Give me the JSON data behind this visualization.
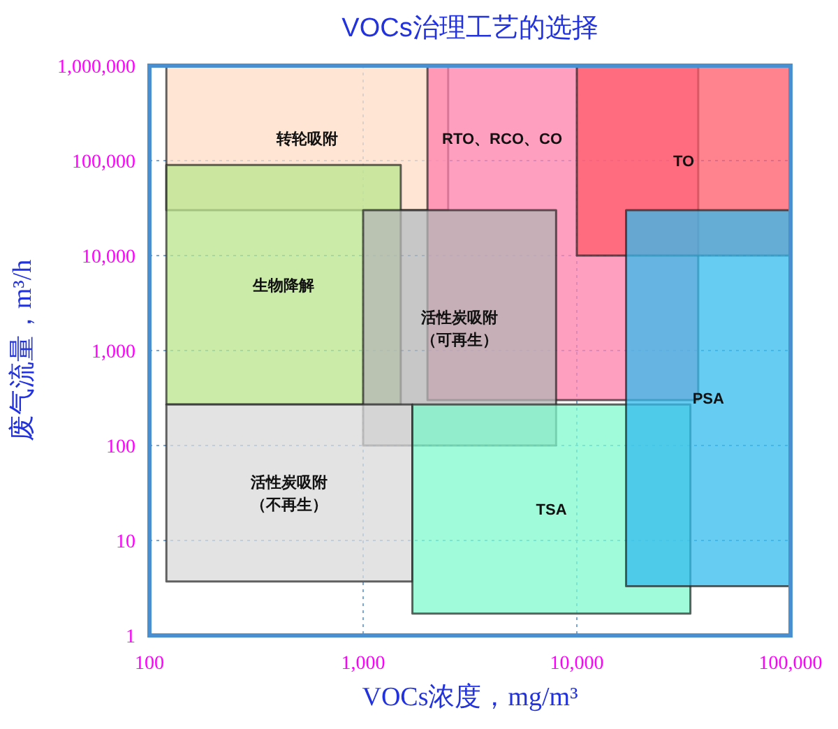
{
  "chart_data": {
    "type": "area",
    "title": "VOCs治理工艺的选择",
    "xlabel": "VOCs浓度，mg/m³",
    "ylabel": "废气流量，m³/h",
    "log": "xy",
    "grid": true,
    "xlim": [
      100,
      100000
    ],
    "ylim": [
      1,
      1000000
    ],
    "xticks": [
      {
        "value": 100,
        "label": "100"
      },
      {
        "value": 1000,
        "label": "1,000"
      },
      {
        "value": 10000,
        "label": "10,000"
      },
      {
        "value": 100000,
        "label": "100,000"
      }
    ],
    "yticks": [
      {
        "value": 1,
        "label": "1"
      },
      {
        "value": 10,
        "label": "10"
      },
      {
        "value": 100,
        "label": "100"
      },
      {
        "value": 1000,
        "label": "1,000"
      },
      {
        "value": 10000,
        "label": "10,000"
      },
      {
        "value": 100000,
        "label": "100,000"
      },
      {
        "value": 1000000,
        "label": "1,000,000"
      }
    ],
    "series": [
      {
        "name": "转轮吸附",
        "color": "#ffdcc4",
        "x": [
          120,
          2500,
          2500,
          120
        ],
        "values": [
          1000000,
          1000000,
          30000,
          30000
        ]
      },
      {
        "name": "RTO、RCO、CO",
        "color": "#ff7fab",
        "x": [
          2000,
          37000,
          37000,
          2000
        ],
        "values": [
          1000000,
          1000000,
          300,
          300
        ]
      },
      {
        "name": "TO",
        "color": "#ff5a6a",
        "x": [
          10000,
          100000,
          100000,
          10000
        ],
        "values": [
          1000000,
          1000000,
          10000,
          10000
        ]
      },
      {
        "name": "生物降解",
        "color": "#b9e68c",
        "x": [
          120,
          1500,
          1500,
          120
        ],
        "values": [
          90000,
          90000,
          270,
          270
        ]
      },
      {
        "name": "活性炭吸附（可再生）",
        "color": "#b4b4b4",
        "x": [
          1000,
          8000,
          8000,
          1000
        ],
        "values": [
          30000,
          30000,
          100,
          100
        ]
      },
      {
        "name": "活性炭吸附（不再生）",
        "color": "#d9d9d9",
        "x": [
          120,
          1700,
          1700,
          120
        ],
        "values": [
          270,
          270,
          3.7,
          3.7
        ]
      },
      {
        "name": "TSA",
        "color": "#7ff9cc",
        "x": [
          1700,
          34000,
          34000,
          1700
        ],
        "values": [
          270,
          270,
          1.7,
          1.7
        ]
      },
      {
        "name": "PSA",
        "color": "#33bbee",
        "x": [
          17000,
          100000,
          100000,
          17000
        ],
        "values": [
          30000,
          30000,
          3.3,
          3.3
        ]
      }
    ]
  }
}
